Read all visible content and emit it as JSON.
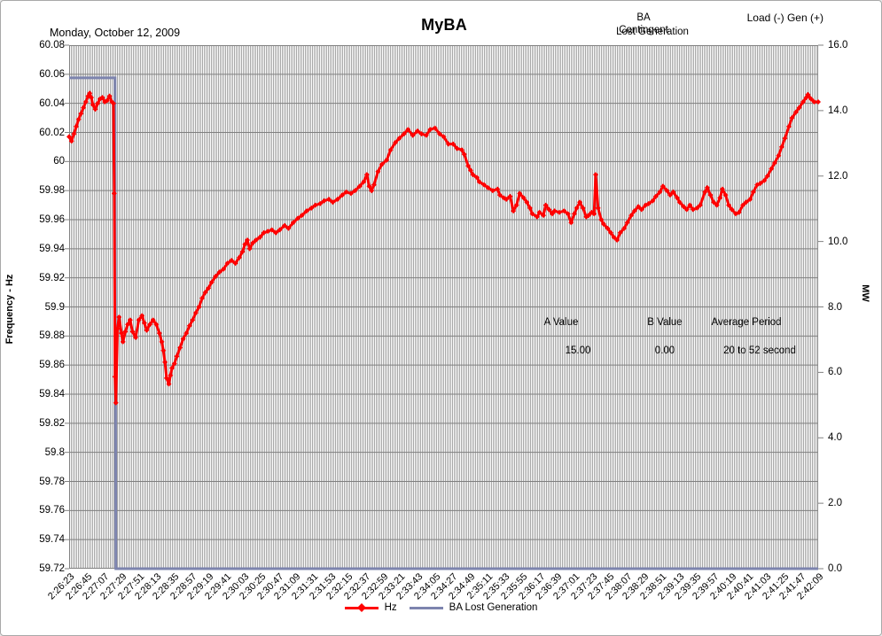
{
  "header": {
    "date": "Monday, October 12, 2009",
    "title": "MyBA",
    "ba_contingent_line1": "BA",
    "ba_contingent_line2": "Contingent",
    "lost_generation_overlay": "Lost Generation",
    "load_gen_label": "Load (-) Gen (+)"
  },
  "colors": {
    "hz_line": "#ff0000",
    "lost_gen_line": "#7d84ae",
    "gridline": "#7f7f7f",
    "plot_border": "#808080",
    "stripe": "#a5a5a5"
  },
  "annotations": {
    "a_label": "A Value",
    "a_value": "15.00",
    "b_label": "B Value",
    "b_value": "0.00",
    "period_label": "Average Period",
    "period_value": "20 to 52 second"
  },
  "legend": {
    "items": [
      {
        "label": "Hz",
        "color": "#ff0000",
        "marker": "diamond"
      },
      {
        "label": "BA Lost Generation",
        "color": "#7d84ae",
        "marker": "none"
      }
    ]
  },
  "chart_data": {
    "type": "line",
    "title": "MyBA",
    "grid": true,
    "left_axis": {
      "label": "Frequency - Hz",
      "min": 59.72,
      "max": 60.08,
      "tick_step": 0.02,
      "tick_labels": [
        "60.08",
        "60.06",
        "60.04",
        "60.02",
        "60",
        "59.98",
        "59.96",
        "59.94",
        "59.92",
        "59.9",
        "59.88",
        "59.86",
        "59.84",
        "59.82",
        "59.8",
        "59.78",
        "59.76",
        "59.74",
        "59.72"
      ]
    },
    "right_axis": {
      "label": "MW",
      "min": 0.0,
      "max": 16.0,
      "tick_step": 2.0,
      "tick_labels": [
        "16.0",
        "14.0",
        "12.0",
        "10.0",
        "8.0",
        "6.0",
        "4.0",
        "2.0",
        "0.0"
      ]
    },
    "x_axis": {
      "interval_seconds": 22,
      "total_seconds": 946,
      "tick_labels": [
        "2:26:23",
        "2:26:45",
        "2:27:07",
        "2:27:29",
        "2:27:51",
        "2:28:13",
        "2:28:35",
        "2:28:57",
        "2:29:19",
        "2:29:41",
        "2:30:03",
        "2:30:25",
        "2:30:47",
        "2:31:09",
        "2:31:31",
        "2:31:53",
        "2:32:15",
        "2:32:37",
        "2:32:59",
        "2:33:21",
        "2:33:43",
        "2:34:05",
        "2:34:27",
        "2:34:49",
        "2:35:11",
        "2:35:33",
        "2:35:55",
        "2:36:17",
        "2:36:39",
        "2:37:01",
        "2:37:23",
        "2:37:45",
        "2:38:07",
        "2:38:29",
        "2:38:51",
        "2:39:13",
        "2:39:35",
        "2:39:57",
        "2:40:19",
        "2:40:41",
        "2:41:03",
        "2:41:25",
        "2:41:47",
        "2:42:09"
      ]
    },
    "series": [
      {
        "name": "Hz",
        "axis": "left",
        "color": "#ff0000",
        "marker": "diamond",
        "points": [
          [
            0,
            60.017
          ],
          [
            3,
            60.014
          ],
          [
            6,
            60.019
          ],
          [
            9,
            60.024
          ],
          [
            12,
            60.029
          ],
          [
            15,
            60.033
          ],
          [
            18,
            60.037
          ],
          [
            21,
            60.041
          ],
          [
            24,
            60.045
          ],
          [
            26,
            60.047
          ],
          [
            28,
            60.044
          ],
          [
            30,
            60.039
          ],
          [
            33,
            60.036
          ],
          [
            36,
            60.04
          ],
          [
            39,
            60.043
          ],
          [
            42,
            60.044
          ],
          [
            45,
            60.041
          ],
          [
            48,
            60.042
          ],
          [
            51,
            60.045
          ],
          [
            54,
            60.041
          ],
          [
            56,
            60.04
          ],
          [
            57,
            59.978
          ],
          [
            58,
            59.852
          ],
          [
            59,
            59.834
          ],
          [
            61,
            59.885
          ],
          [
            63,
            59.893
          ],
          [
            66,
            59.882
          ],
          [
            68,
            59.876
          ],
          [
            71,
            59.883
          ],
          [
            74,
            59.888
          ],
          [
            77,
            59.891
          ],
          [
            80,
            59.883
          ],
          [
            84,
            59.879
          ],
          [
            88,
            59.891
          ],
          [
            92,
            59.894
          ],
          [
            95,
            59.889
          ],
          [
            98,
            59.884
          ],
          [
            102,
            59.888
          ],
          [
            106,
            59.891
          ],
          [
            110,
            59.888
          ],
          [
            114,
            59.882
          ],
          [
            117,
            59.876
          ],
          [
            119,
            59.87
          ],
          [
            121,
            59.862
          ],
          [
            123,
            59.851
          ],
          [
            126,
            59.847
          ],
          [
            128,
            59.853
          ],
          [
            130,
            59.858
          ],
          [
            133,
            59.861
          ],
          [
            136,
            59.866
          ],
          [
            140,
            59.872
          ],
          [
            144,
            59.878
          ],
          [
            148,
            59.882
          ],
          [
            152,
            59.887
          ],
          [
            156,
            59.891
          ],
          [
            160,
            59.896
          ],
          [
            164,
            59.9
          ],
          [
            168,
            59.906
          ],
          [
            172,
            59.91
          ],
          [
            176,
            59.913
          ],
          [
            180,
            59.917
          ],
          [
            185,
            59.921
          ],
          [
            190,
            59.924
          ],
          [
            195,
            59.926
          ],
          [
            200,
            59.93
          ],
          [
            205,
            59.932
          ],
          [
            210,
            59.93
          ],
          [
            215,
            59.934
          ],
          [
            219,
            59.938
          ],
          [
            222,
            59.943
          ],
          [
            225,
            59.946
          ],
          [
            228,
            59.94
          ],
          [
            232,
            59.944
          ],
          [
            236,
            59.946
          ],
          [
            241,
            59.948
          ],
          [
            246,
            59.951
          ],
          [
            251,
            59.952
          ],
          [
            256,
            59.953
          ],
          [
            261,
            59.951
          ],
          [
            266,
            59.953
          ],
          [
            272,
            59.956
          ],
          [
            277,
            59.954
          ],
          [
            283,
            59.958
          ],
          [
            289,
            59.961
          ],
          [
            294,
            59.963
          ],
          [
            300,
            59.966
          ],
          [
            306,
            59.968
          ],
          [
            311,
            59.97
          ],
          [
            317,
            59.971
          ],
          [
            322,
            59.973
          ],
          [
            328,
            59.974
          ],
          [
            333,
            59.972
          ],
          [
            339,
            59.974
          ],
          [
            345,
            59.977
          ],
          [
            350,
            59.979
          ],
          [
            356,
            59.978
          ],
          [
            361,
            59.98
          ],
          [
            367,
            59.983
          ],
          [
            372,
            59.986
          ],
          [
            376,
            59.991
          ],
          [
            379,
            59.983
          ],
          [
            382,
            59.98
          ],
          [
            385,
            59.984
          ],
          [
            390,
            59.993
          ],
          [
            395,
            59.998
          ],
          [
            401,
            60.001
          ],
          [
            406,
            60.008
          ],
          [
            412,
            60.013
          ],
          [
            417,
            60.016
          ],
          [
            423,
            60.019
          ],
          [
            428,
            60.022
          ],
          [
            434,
            60.018
          ],
          [
            440,
            60.021
          ],
          [
            445,
            60.019
          ],
          [
            451,
            60.018
          ],
          [
            456,
            60.022
          ],
          [
            462,
            60.023
          ],
          [
            468,
            60.019
          ],
          [
            473,
            60.017
          ],
          [
            479,
            60.012
          ],
          [
            485,
            60.012
          ],
          [
            490,
            60.009
          ],
          [
            496,
            60.008
          ],
          [
            499,
            60.005
          ],
          [
            504,
            59.997
          ],
          [
            507,
            59.994
          ],
          [
            510,
            59.991
          ],
          [
            515,
            59.989
          ],
          [
            518,
            59.986
          ],
          [
            524,
            59.984
          ],
          [
            529,
            59.982
          ],
          [
            535,
            59.98
          ],
          [
            541,
            59.981
          ],
          [
            544,
            59.977
          ],
          [
            549,
            59.975
          ],
          [
            552,
            59.974
          ],
          [
            557,
            59.976
          ],
          [
            561,
            59.966
          ],
          [
            565,
            59.97
          ],
          [
            569,
            59.978
          ],
          [
            574,
            59.975
          ],
          [
            578,
            59.972
          ],
          [
            582,
            59.968
          ],
          [
            585,
            59.964
          ],
          [
            591,
            59.962
          ],
          [
            594,
            59.965
          ],
          [
            599,
            59.963
          ],
          [
            602,
            59.97
          ],
          [
            606,
            59.967
          ],
          [
            610,
            59.964
          ],
          [
            613,
            59.966
          ],
          [
            619,
            59.965
          ],
          [
            625,
            59.966
          ],
          [
            630,
            59.964
          ],
          [
            634,
            59.958
          ],
          [
            638,
            59.964
          ],
          [
            641,
            59.968
          ],
          [
            645,
            59.972
          ],
          [
            649,
            59.968
          ],
          [
            653,
            59.962
          ],
          [
            656,
            59.963
          ],
          [
            660,
            59.965
          ],
          [
            663,
            59.964
          ],
          [
            665,
            59.991
          ],
          [
            668,
            59.968
          ],
          [
            672,
            59.96
          ],
          [
            675,
            59.957
          ],
          [
            680,
            59.954
          ],
          [
            684,
            59.951
          ],
          [
            688,
            59.948
          ],
          [
            692,
            59.946
          ],
          [
            696,
            59.951
          ],
          [
            701,
            59.954
          ],
          [
            705,
            59.958
          ],
          [
            710,
            59.963
          ],
          [
            714,
            59.966
          ],
          [
            719,
            59.969
          ],
          [
            723,
            59.967
          ],
          [
            728,
            59.97
          ],
          [
            732,
            59.971
          ],
          [
            737,
            59.973
          ],
          [
            741,
            59.976
          ],
          [
            746,
            59.979
          ],
          [
            750,
            59.983
          ],
          [
            755,
            59.98
          ],
          [
            759,
            59.977
          ],
          [
            763,
            59.979
          ],
          [
            768,
            59.975
          ],
          [
            771,
            59.972
          ],
          [
            776,
            59.969
          ],
          [
            780,
            59.967
          ],
          [
            784,
            59.97
          ],
          [
            788,
            59.967
          ],
          [
            793,
            59.968
          ],
          [
            797,
            59.97
          ],
          [
            803,
            59.979
          ],
          [
            806,
            59.982
          ],
          [
            810,
            59.977
          ],
          [
            814,
            59.972
          ],
          [
            818,
            59.97
          ],
          [
            822,
            59.975
          ],
          [
            825,
            59.981
          ],
          [
            829,
            59.977
          ],
          [
            833,
            59.97
          ],
          [
            837,
            59.967
          ],
          [
            842,
            59.964
          ],
          [
            846,
            59.965
          ],
          [
            851,
            59.97
          ],
          [
            855,
            59.972
          ],
          [
            860,
            59.974
          ],
          [
            864,
            59.979
          ],
          [
            869,
            59.984
          ],
          [
            873,
            59.985
          ],
          [
            878,
            59.987
          ],
          [
            882,
            59.99
          ],
          [
            887,
            59.995
          ],
          [
            891,
            59.999
          ],
          [
            896,
            60.004
          ],
          [
            900,
            60.01
          ],
          [
            904,
            60.016
          ],
          [
            909,
            60.024
          ],
          [
            913,
            60.03
          ],
          [
            918,
            60.034
          ],
          [
            922,
            60.037
          ],
          [
            927,
            60.041
          ],
          [
            931,
            60.044
          ],
          [
            933,
            60.046
          ],
          [
            937,
            60.043
          ],
          [
            941,
            60.041
          ],
          [
            946,
            60.041
          ]
        ]
      },
      {
        "name": "BA Lost Generation",
        "axis": "right",
        "color": "#7d84ae",
        "marker": "none",
        "points": [
          [
            0,
            15.0
          ],
          [
            58,
            15.0
          ],
          [
            59,
            0.0
          ],
          [
            946,
            0.0
          ]
        ]
      }
    ]
  }
}
